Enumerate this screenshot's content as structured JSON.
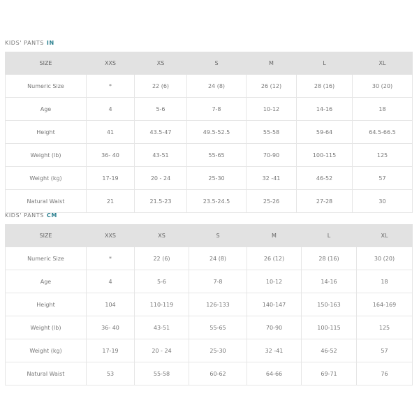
{
  "tables": [
    {
      "title": "KIDS' PANTS",
      "unit": "IN",
      "headers": [
        "SIZE",
        "XXS",
        "XS",
        "S",
        "M",
        "L",
        "XL"
      ],
      "rows": [
        [
          "Numeric Size",
          "*",
          "22 (6)",
          "24 (8)",
          "26 (12)",
          "28 (16)",
          "30 (20)"
        ],
        [
          "Age",
          "4",
          "5-6",
          "7-8",
          "10-12",
          "14-16",
          "18"
        ],
        [
          "Height",
          "41",
          "43.5-47",
          "49.5-52.5",
          "55-58",
          "59-64",
          "64.5-66.5"
        ],
        [
          "Weight (lb)",
          "36- 40",
          "43-51",
          "55-65",
          "70-90",
          "100-115",
          "125"
        ],
        [
          "Weight (kg)",
          "17-19",
          "20 - 24",
          "25-30",
          "32 -41",
          "46-52",
          "57"
        ],
        [
          "Natural Waist",
          "21",
          "21.5-23",
          "23.5-24.5",
          "25-26",
          "27-28",
          "30"
        ]
      ]
    },
    {
      "title": "KIDS' PANTS",
      "unit": "CM",
      "headers": [
        "SIZE",
        "XXS",
        "XS",
        "S",
        "M",
        "L",
        "XL"
      ],
      "rows": [
        [
          "Numeric Size",
          "*",
          "22 (6)",
          "24 (8)",
          "26 (12)",
          "28 (16)",
          "30 (20)"
        ],
        [
          "Age",
          "4",
          "5-6",
          "7-8",
          "10-12",
          "14-16",
          "18"
        ],
        [
          "Height",
          "104",
          "110-119",
          "126-133",
          "140-147",
          "150-163",
          "164-169"
        ],
        [
          "Weight (lb)",
          "36- 40",
          "43-51",
          "55-65",
          "70-90",
          "100-115",
          "125"
        ],
        [
          "Weight (kg)",
          "17-19",
          "20 - 24",
          "25-30",
          "32 -41",
          "46-52",
          "57"
        ],
        [
          "Natural Waist",
          "53",
          "55-58",
          "60-62",
          "64-66",
          "69-71",
          "76"
        ]
      ]
    }
  ],
  "colors": {
    "unit_accent": "#2a7f8f",
    "header_bg": "#e2e2e2"
  }
}
